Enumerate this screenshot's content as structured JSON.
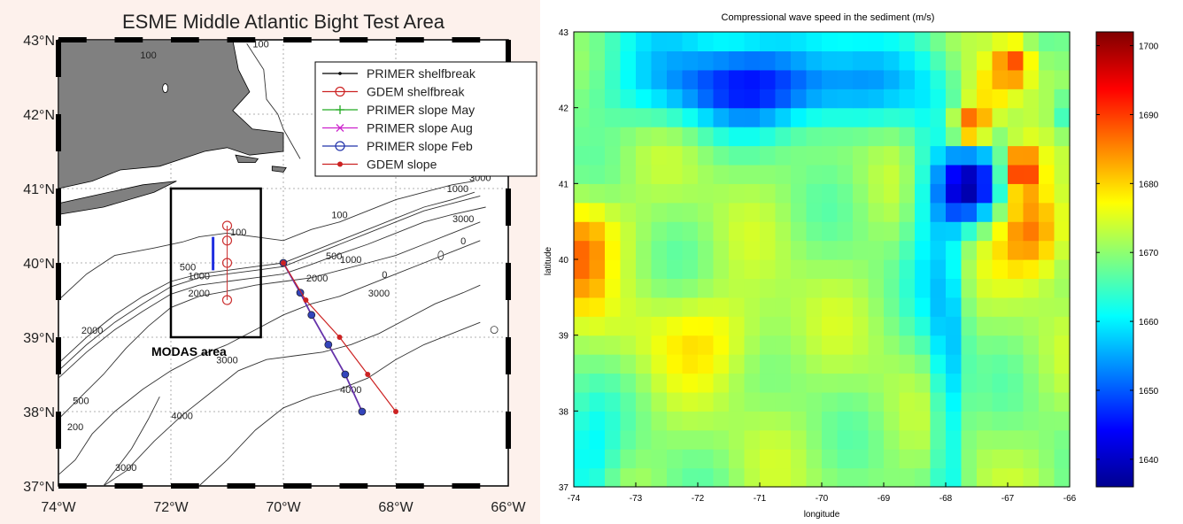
{
  "left_panel": {
    "title": "ESME Middle Atlantic Bight Test Area",
    "lat_ticks": [
      "43°N",
      "42°N",
      "41°N",
      "40°N",
      "39°N",
      "38°N",
      "37°N"
    ],
    "lon_ticks": [
      "74°W",
      "72°W",
      "70°W",
      "68°W",
      "66°W"
    ],
    "legend": [
      {
        "label": "PRIMER shelfbreak",
        "color": "#000000",
        "marker": "dot"
      },
      {
        "label": "GDEM shelfbreak",
        "color": "#cc2222",
        "marker": "circle"
      },
      {
        "label": "PRIMER slope May",
        "color": "#22aa22",
        "marker": "plus"
      },
      {
        "label": "PRIMER slope Aug",
        "color": "#cc22cc",
        "marker": "x"
      },
      {
        "label": "PRIMER slope Feb",
        "color": "#2233aa",
        "marker": "circle"
      },
      {
        "label": "GDEM slope",
        "color": "#cc2222",
        "marker": "star"
      }
    ],
    "box_label": "MODAS area",
    "box": {
      "lon": [
        -72,
        -70.4
      ],
      "lat": [
        39,
        41
      ]
    },
    "contour_labels": [
      "100",
      "100",
      "100",
      "500",
      "1000",
      "2000",
      "500",
      "1000",
      "2000",
      "3000",
      "3000",
      "3000",
      "4000",
      "4000",
      "3000",
      "2000",
      "500",
      "100",
      "0",
      "0",
      "200",
      "1000",
      "3000"
    ],
    "tracks": {
      "primer_shelfbreak": {
        "lon": [
          -71.25,
          -71.25
        ],
        "lat": [
          39.9,
          40.35
        ]
      },
      "gdem_shelfbreak": {
        "lon": [
          -71,
          -71,
          -71,
          -71
        ],
        "lat": [
          40.5,
          40.3,
          40.0,
          39.5
        ]
      },
      "primer_slope": {
        "lon": [
          -70,
          -69.7,
          -69.5,
          -69.2,
          -68.9,
          -68.6
        ],
        "lat": [
          40.0,
          39.6,
          39.3,
          38.9,
          38.5,
          38.0
        ]
      },
      "gdem_slope": {
        "lon": [
          -70,
          -69.6,
          -69.0,
          -68.5,
          -68.0
        ],
        "lat": [
          40.0,
          39.5,
          39.0,
          38.5,
          38.0
        ]
      }
    }
  },
  "chart_data": {
    "type": "heatmap",
    "title": "Compressional wave speed in the sediment (m/s)",
    "xlabel": "longitude",
    "ylabel": "latitude",
    "xlim": [
      -74,
      -66
    ],
    "ylim": [
      37,
      43
    ],
    "x_ticks": [
      "-74",
      "-73",
      "-72",
      "-71",
      "-70",
      "-69",
      "-68",
      "-67",
      "-66"
    ],
    "y_ticks": [
      "43",
      "42",
      "41",
      "40",
      "39",
      "38",
      "37"
    ],
    "colorbar": {
      "min": 1636,
      "max": 1702,
      "ticks": [
        "1700",
        "1690",
        "1680",
        "1670",
        "1660",
        "1650",
        "1640"
      ],
      "colormap": "jet"
    },
    "grid": {
      "lon_start": -74,
      "lat_start": 37,
      "cell": 0.25,
      "cols": 32,
      "rows": 24
    }
  }
}
